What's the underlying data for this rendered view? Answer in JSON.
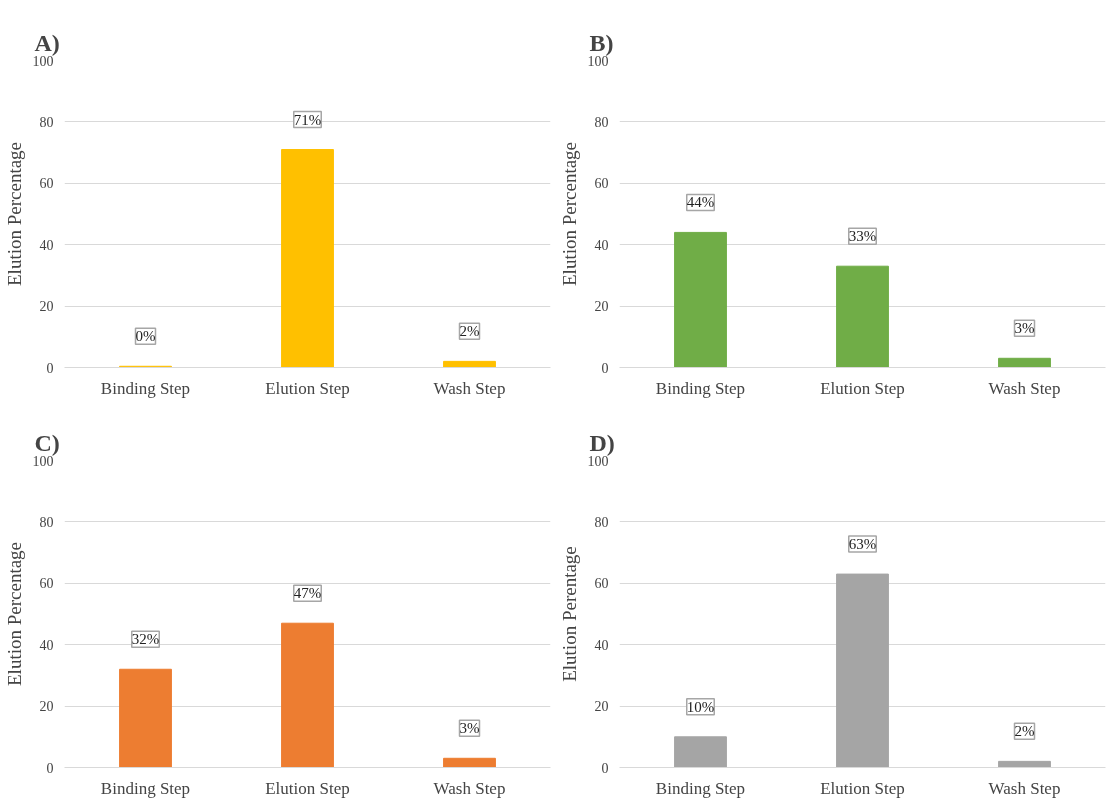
{
  "chart_data": [
    {
      "type": "bar",
      "title": "A)",
      "ylabel": "Elution Percentage",
      "categories": [
        "Binding Step",
        "Elution Step",
        "Wash Step"
      ],
      "values": [
        0.4,
        71,
        2
      ],
      "value_labels": [
        "0%",
        "71%",
        "2%"
      ],
      "color": "#ffc000",
      "ylim": [
        0,
        100
      ],
      "yticks": [
        0,
        20,
        40,
        60,
        80,
        100
      ],
      "grid": "y"
    },
    {
      "type": "bar",
      "title": "B)",
      "ylabel": "Elution Percentage",
      "categories": [
        "Binding Step",
        "Elution Step",
        "Wash Step"
      ],
      "values": [
        44,
        33,
        3
      ],
      "value_labels": [
        "44%",
        "33%",
        "3%"
      ],
      "color": "#70ad47",
      "ylim": [
        0,
        100
      ],
      "yticks": [
        0,
        20,
        40,
        60,
        80,
        100
      ],
      "grid": "y"
    },
    {
      "type": "bar",
      "title": "C)",
      "ylabel": "Elution Percentage",
      "categories": [
        "Binding Step",
        "Elution Step",
        "Wash Step"
      ],
      "values": [
        32,
        47,
        3
      ],
      "value_labels": [
        "32%",
        "47%",
        "3%"
      ],
      "color": "#ed7d31",
      "ylim": [
        0,
        100
      ],
      "yticks": [
        0,
        20,
        40,
        60,
        80,
        100
      ],
      "grid": "y"
    },
    {
      "type": "bar",
      "title": "D)",
      "ylabel": "Elution Perentage",
      "categories": [
        "Binding Step",
        "Elution Step",
        "Wash Step"
      ],
      "values": [
        10,
        63,
        2
      ],
      "value_labels": [
        "10%",
        "63%",
        "2%"
      ],
      "color": "#a5a5a5",
      "ylim": [
        0,
        100
      ],
      "yticks": [
        0,
        20,
        40,
        60,
        80,
        100
      ],
      "grid": "y"
    }
  ]
}
